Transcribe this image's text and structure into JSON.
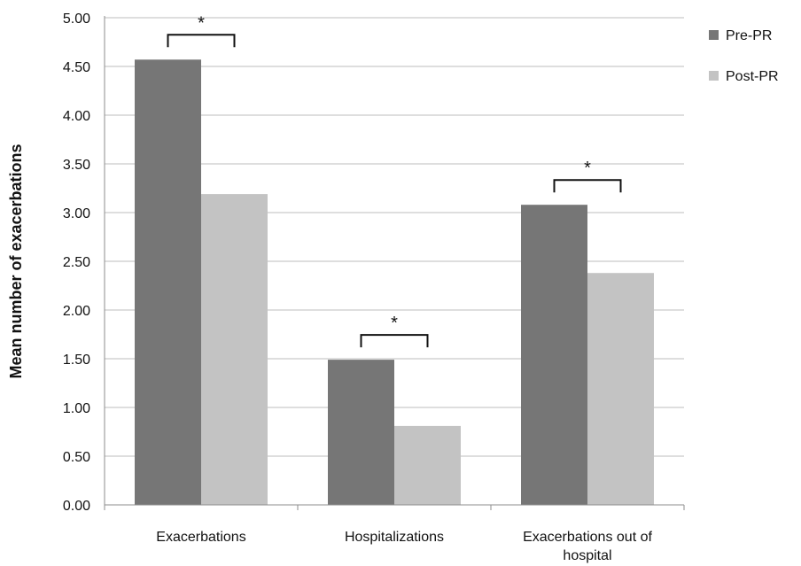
{
  "chart_data": {
    "type": "bar",
    "ylabel": "Mean number of exacerbations",
    "ylim": [
      0,
      5
    ],
    "yticks": [
      "0.00",
      "0.50",
      "1.00",
      "1.50",
      "2.00",
      "2.50",
      "3.00",
      "3.50",
      "4.00",
      "4.50",
      "5.00"
    ],
    "categories": [
      [
        "Exacerbations"
      ],
      [
        "Hospitalizations"
      ],
      [
        "Exacerbations out of",
        "hospital"
      ]
    ],
    "series": [
      {
        "name": "Pre-PR",
        "color": "#767676",
        "values": [
          4.57,
          1.49,
          3.08
        ]
      },
      {
        "name": "Post-PR",
        "color": "#c3c3c3",
        "values": [
          3.19,
          0.81,
          2.38
        ]
      }
    ],
    "significance": [
      {
        "category": 0,
        "label": "*"
      },
      {
        "category": 1,
        "label": "*"
      },
      {
        "category": 2,
        "label": "*"
      }
    ],
    "grid": true,
    "legend": "top-right"
  }
}
